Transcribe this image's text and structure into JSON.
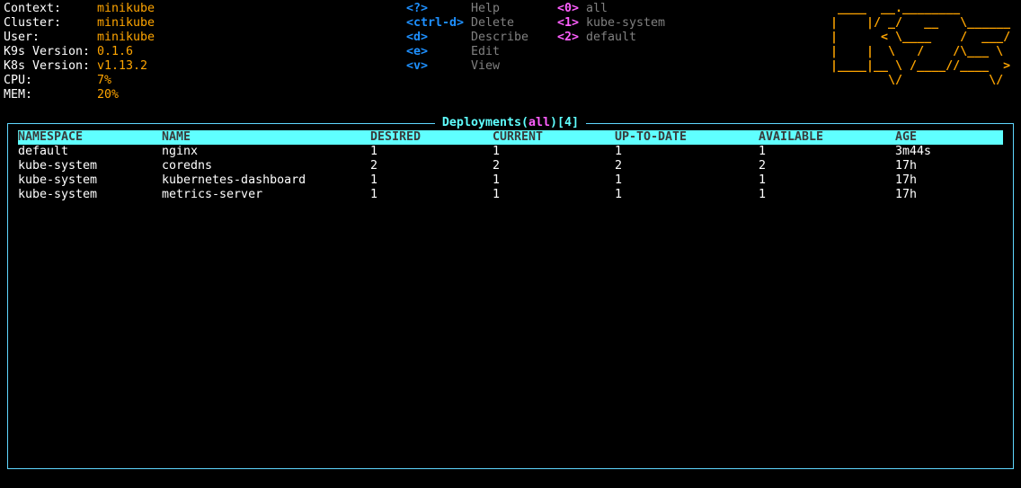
{
  "info": [
    {
      "label": "Context:",
      "value": "minikube"
    },
    {
      "label": "Cluster:",
      "value": "minikube"
    },
    {
      "label": "User:",
      "value": "minikube"
    },
    {
      "label": "K9s Version:",
      "value": "0.1.6"
    },
    {
      "label": "K8s Version:",
      "value": "v1.13.2"
    },
    {
      "label": "CPU:",
      "value": "7%"
    },
    {
      "label": "MEM:",
      "value": "20%"
    }
  ],
  "shortcuts": [
    {
      "key": "<?>",
      "action": "Help"
    },
    {
      "key": "<ctrl-d>",
      "action": "Delete"
    },
    {
      "key": "<d>",
      "action": "Describe"
    },
    {
      "key": "<e>",
      "action": "Edit"
    },
    {
      "key": "<v>",
      "action": "View"
    }
  ],
  "namespaces": [
    {
      "key": "<0>",
      "name": "all"
    },
    {
      "key": "<1>",
      "name": "kube-system"
    },
    {
      "key": "<2>",
      "name": "default"
    }
  ],
  "logo": [
    " ____  __.________       ",
    "|    |/ _/   __   \\______",
    "|      < \\____    /  ___/",
    "|    |  \\   /    /\\___ \\ ",
    "|____|__ \\ /____//____  >",
    "        \\/            \\/ "
  ],
  "table": {
    "title_prefix": "Deployments(",
    "title_filter": "all",
    "title_suffix": ")[4]",
    "columns": [
      "NAMESPACE",
      "NAME",
      "DESIRED",
      "CURRENT",
      "UP-TO-DATE",
      "AVAILABLE",
      "AGE"
    ],
    "rows": [
      [
        "default",
        "nginx",
        "1",
        "1",
        "1",
        "1",
        "3m44s"
      ],
      [
        "kube-system",
        "coredns",
        "2",
        "2",
        "2",
        "2",
        "17h"
      ],
      [
        "kube-system",
        "kubernetes-dashboard",
        "1",
        "1",
        "1",
        "1",
        "17h"
      ],
      [
        "kube-system",
        "metrics-server",
        "1",
        "1",
        "1",
        "1",
        "17h"
      ]
    ]
  },
  "colors": {
    "accent": "#5fffff",
    "value": "#ffa500",
    "key": "#1e90ff",
    "namespace_key": "#ff5fff",
    "muted": "#808080"
  }
}
